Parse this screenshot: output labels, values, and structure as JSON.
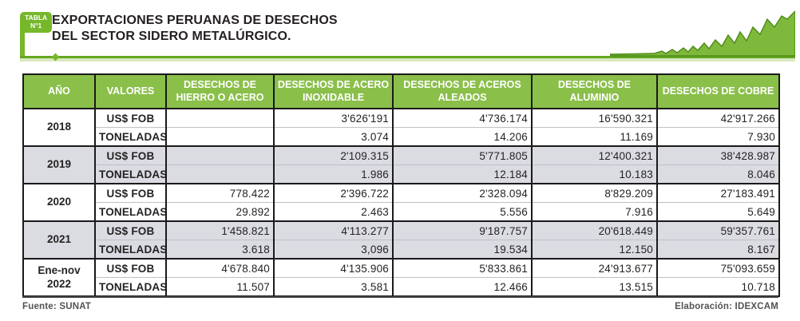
{
  "header": {
    "badge_line1": "TABLA",
    "badge_line2": "N°1",
    "title_line1": "EXPORTACIONES PERUANAS DE DESECHOS",
    "title_line2": "DEL SECTOR SIDERO METALÚRGICO."
  },
  "colors": {
    "accent_green": "#76b82a",
    "table_header_green": "#8abf4a",
    "shaded_row": "#dbdbe2",
    "border_dark": "#1a1a1a",
    "footer_text": "#515254"
  },
  "chart_data": {
    "type": "table",
    "title": "EXPORTACIONES PERUANAS DE DESECHOS DEL SECTOR SIDERO METALÚRGICO.",
    "columns": [
      "AÑO",
      "VALORES",
      "DESECHOS DE HIERRO O ACERO",
      "DESECHOS DE ACERO INOXIDABLE",
      "DESECHOS DE ACEROS ALEADOS",
      "DESECHOS DE ALUMINIO",
      "DESECHOS DE COBRE"
    ],
    "value_row_labels": [
      "US$ FOB",
      "TONELADAS"
    ],
    "groups": [
      {
        "year": "2018",
        "shaded": false,
        "fob": [
          "",
          "3'626'191",
          "4'736.174",
          "16'590.321",
          "42'917.266"
        ],
        "toneladas": [
          "",
          "3.074",
          "14.206",
          "11.169",
          "7.930"
        ]
      },
      {
        "year": "2019",
        "shaded": true,
        "fob": [
          "",
          "2'109.315",
          "5'771.805",
          "12'400.321",
          "38'428.987"
        ],
        "toneladas": [
          "",
          "1.986",
          "12.184",
          "10.183",
          "8.046"
        ]
      },
      {
        "year": "2020",
        "shaded": false,
        "fob": [
          "778.422",
          "2'396.722",
          "2'328.094",
          "8'829.209",
          "27'183.491"
        ],
        "toneladas": [
          "29.892",
          "2.463",
          "5.556",
          "7.916",
          "5.649"
        ]
      },
      {
        "year": "2021",
        "shaded": true,
        "fob": [
          "1'458.821",
          "4'113.277",
          "9'187.757",
          "20'618.449",
          "59'357.761"
        ],
        "toneladas": [
          "3.618",
          "3,096",
          "19.534",
          "12.150",
          "8.167"
        ]
      },
      {
        "year": "Ene-nov 2022",
        "shaded": false,
        "fob": [
          "4'678.840",
          "4'135.906",
          "5'833.861",
          "24'913.677",
          "75'093.659"
        ],
        "toneladas": [
          "11.507",
          "3.581",
          "12.466",
          "13.515",
          "10.718"
        ]
      }
    ]
  },
  "footer": {
    "source": "Fuente: SUNAT",
    "elaboration": "Elaboración: IDEXCAM"
  }
}
